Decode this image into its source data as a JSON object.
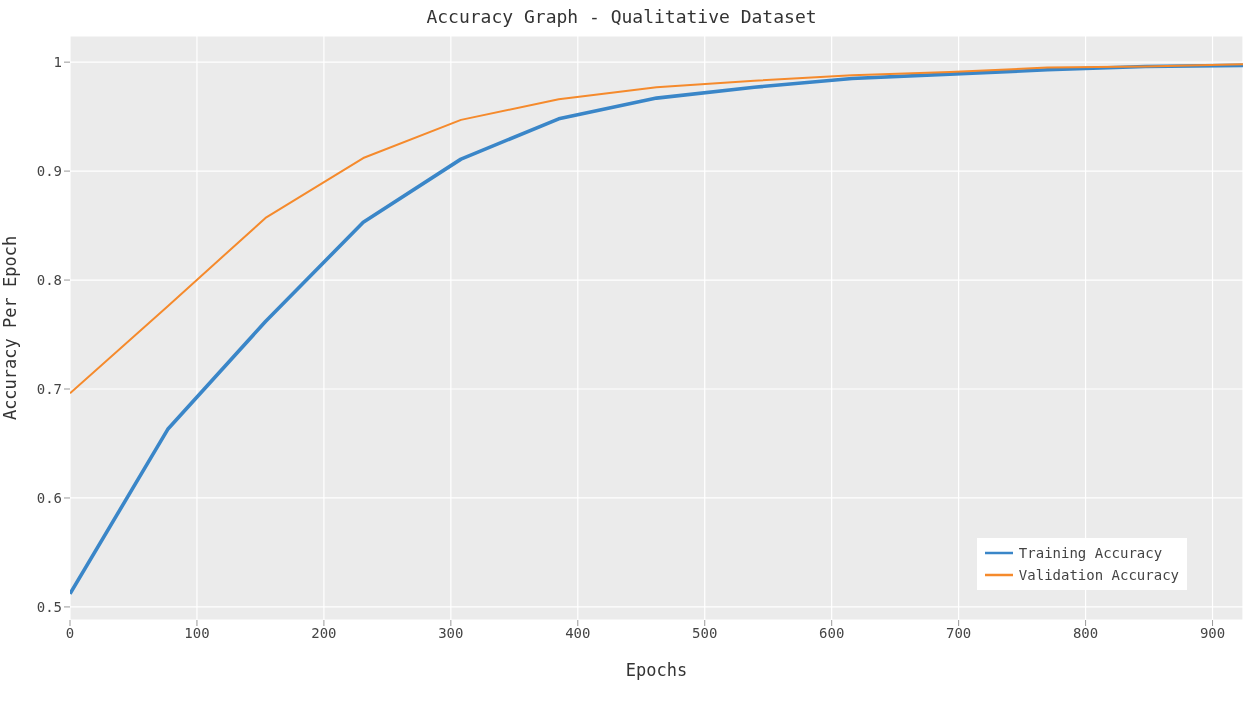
{
  "chart_data": {
    "type": "line",
    "title": "Accuracy Graph - Qualitative Dataset",
    "xlabel": "Epochs",
    "ylabel": "Accuracy Per Epoch",
    "x": [
      0,
      77,
      154,
      231,
      308,
      385,
      462,
      539,
      616,
      693,
      770,
      847,
      924
    ],
    "series": [
      {
        "name": "Training Accuracy",
        "color": "#3a86c8",
        "values": [
          0.512,
          0.663,
          0.762,
          0.853,
          0.911,
          0.948,
          0.967,
          0.977,
          0.985,
          0.989,
          0.993,
          0.996,
          0.997
        ]
      },
      {
        "name": "Validation Accuracy",
        "color": "#f58a2c",
        "values": [
          0.696,
          0.776,
          0.857,
          0.912,
          0.947,
          0.966,
          0.977,
          0.983,
          0.988,
          0.991,
          0.995,
          0.996,
          0.998
        ]
      }
    ],
    "xlim": [
      0,
      924
    ],
    "xticks": [
      0,
      100,
      200,
      300,
      400,
      500,
      600,
      700,
      800,
      900
    ],
    "ylim": [
      0.488,
      1.024
    ],
    "yticks": [
      0.5,
      0.6,
      0.7,
      0.8,
      0.9,
      1
    ],
    "grid": true,
    "legend": "bottom right",
    "marker": "none",
    "line_style": "solid"
  }
}
